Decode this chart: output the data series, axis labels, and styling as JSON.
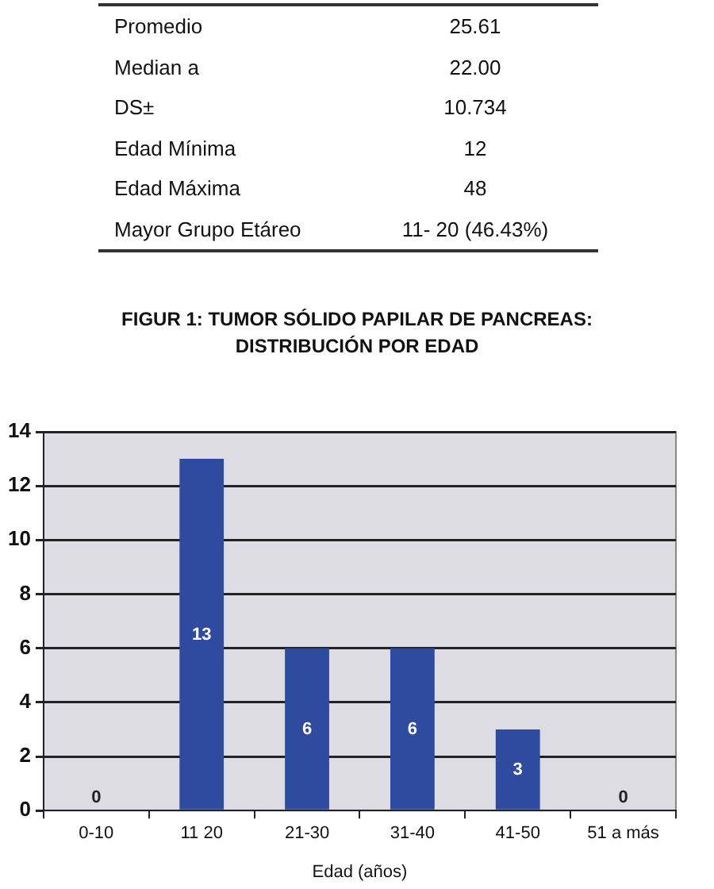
{
  "chart_data": {
    "type": "bar",
    "title": "FIGUR 1: TUMOR SÓLIDO PAPILAR DE PANCREAS: DISTRIBUCIÓN POR EDAD",
    "xlabel": "Edad (años)",
    "annotations": [
      "Promedio",
      "25.61",
      "Median a",
      "22.00",
      "DS±",
      "10.734",
      "Edad Mínima",
      "12",
      "Edad Máxima",
      "48",
      "Mayor Grupo Etáreo",
      "11- 20 (46.43%)"
    ],
    "categories": [
      "0-10",
      "11 20",
      "21-30",
      "31-40",
      "41-50",
      "51 a más"
    ],
    "values": [
      0,
      13,
      6,
      6,
      3,
      0
    ],
    "color": "#2f4ba0",
    "ylim": [
      0,
      14
    ],
    "yticks": [
      0,
      2,
      4,
      6,
      8,
      10,
      12,
      14
    ],
    "grid": "y",
    "legend": false,
    "data_labels": true
  }
}
